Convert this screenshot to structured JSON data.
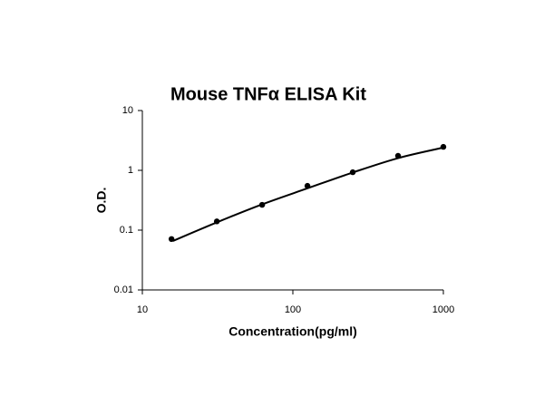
{
  "chart_data": {
    "type": "scatter",
    "title": "Mouse TNFα ELISA Kit",
    "x_label": "Concentration(pg/ml)",
    "y_label": "O.D.",
    "x": [
      15.625,
      31.25,
      62.5,
      125,
      250,
      500,
      1000
    ],
    "values": [
      0.071,
      0.14,
      0.265,
      0.55,
      0.93,
      1.75,
      2.47
    ],
    "color": "#000000",
    "fit": {
      "x": [
        16,
        31.25,
        62.5,
        125,
        250,
        500,
        1000
      ],
      "values": [
        0.066,
        0.135,
        0.27,
        0.5,
        0.92,
        1.6,
        2.4
      ]
    },
    "xlim": [
      10,
      1000
    ],
    "ylim": [
      0.01,
      10
    ],
    "xticks": [
      10,
      100,
      1000
    ],
    "yticks": [
      0.01,
      0.1,
      1,
      10
    ],
    "xscale": "log",
    "yscale": "log",
    "grid": false
  }
}
